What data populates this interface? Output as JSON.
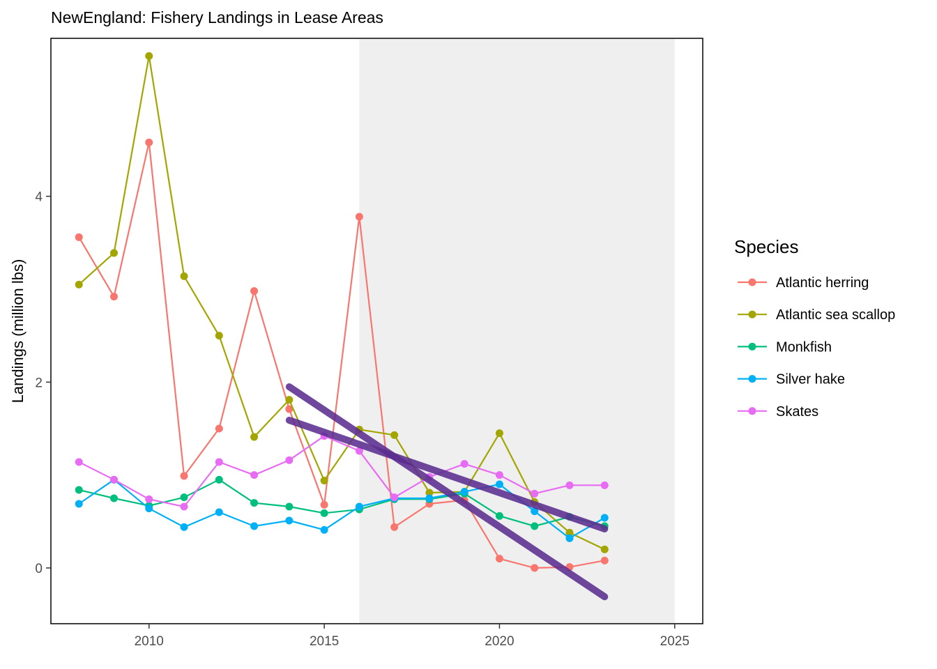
{
  "chart_data": {
    "type": "line",
    "title": "NewEngland: Fishery Landings in Lease Areas",
    "xlabel": "",
    "ylabel": "Landings (million lbs)",
    "xlim": [
      2007.2,
      2025.8
    ],
    "ylim": [
      -0.6,
      5.7
    ],
    "x_ticks": [
      2010,
      2015,
      2020,
      2025
    ],
    "y_ticks": [
      0,
      2,
      4
    ],
    "grid": false,
    "legend_position": "right",
    "legend_title": "Species",
    "shaded_region": {
      "x_start": 2016,
      "x_end": 2025,
      "color": "#efefef"
    },
    "x": [
      2008,
      2009,
      2010,
      2011,
      2012,
      2013,
      2014,
      2015,
      2016,
      2017,
      2018,
      2019,
      2020,
      2021,
      2022,
      2023
    ],
    "series": [
      {
        "name": "Atlantic herring",
        "color": "#F8766D",
        "values": [
          3.56,
          2.92,
          4.58,
          0.99,
          1.5,
          2.98,
          1.71,
          0.68,
          3.78,
          0.44,
          0.69,
          0.73,
          0.1,
          0.0,
          0.01,
          0.08
        ]
      },
      {
        "name": "Atlantic sea scallop",
        "color": "#A3A500",
        "values": [
          3.05,
          3.39,
          5.51,
          3.14,
          2.5,
          1.41,
          1.81,
          0.94,
          1.49,
          1.43,
          0.81,
          0.82,
          1.45,
          0.71,
          0.38,
          0.2
        ]
      },
      {
        "name": "Monkfish",
        "color": "#00BF7D",
        "values": [
          0.84,
          0.75,
          0.67,
          0.76,
          0.95,
          0.7,
          0.66,
          0.59,
          0.63,
          0.74,
          0.74,
          0.8,
          0.56,
          0.45,
          0.55,
          0.45
        ]
      },
      {
        "name": "Silver hake",
        "color": "#00B0F6",
        "values": [
          0.69,
          0.95,
          0.64,
          0.44,
          0.6,
          0.45,
          0.51,
          0.41,
          0.66,
          0.75,
          0.75,
          0.82,
          0.9,
          0.61,
          0.32,
          0.54
        ]
      },
      {
        "name": "Skates",
        "color": "#E76BF3",
        "values": [
          1.14,
          0.95,
          0.74,
          0.66,
          1.14,
          1.0,
          1.16,
          1.42,
          1.26,
          0.76,
          0.98,
          1.12,
          1.0,
          0.8,
          0.89,
          0.89
        ]
      }
    ],
    "trend_lines": [
      {
        "color": "#5b2d8e",
        "x": [
          2014,
          2023
        ],
        "y": [
          1.95,
          -0.31
        ]
      },
      {
        "color": "#5b2d8e",
        "x": [
          2014,
          2023
        ],
        "y": [
          1.59,
          0.42
        ]
      }
    ]
  }
}
